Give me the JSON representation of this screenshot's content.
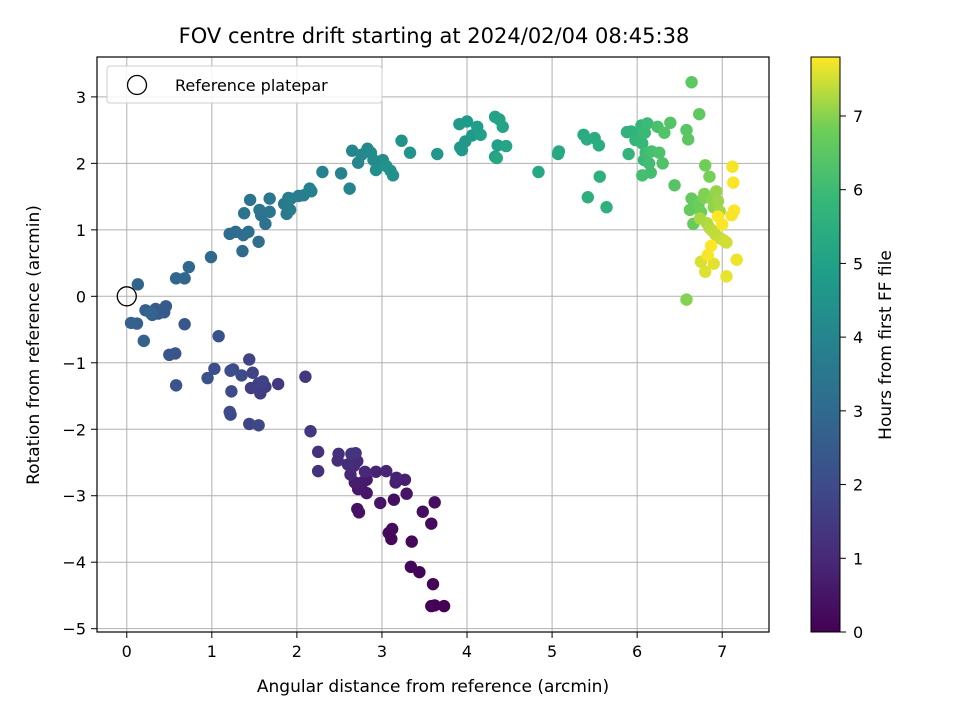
{
  "chart_data": {
    "type": "scatter",
    "title": "FOV centre drift starting at 2024/02/04 08:45:38",
    "xlabel": "Angular distance from reference (arcmin)",
    "ylabel": "Rotation from reference (arcmin)",
    "xlim": [
      -0.35,
      7.55
    ],
    "ylim": [
      -5.05,
      3.6
    ],
    "xticks": [
      "0",
      "1",
      "2",
      "3",
      "4",
      "5",
      "6",
      "7"
    ],
    "yticks": [
      "3",
      "2",
      "1",
      "0",
      "−1",
      "−2",
      "−3",
      "−4",
      "−5"
    ],
    "grid": true,
    "legend_position": "top-left",
    "legend_label": "Reference platepar",
    "reference_point": [
      0,
      0
    ],
    "colorbar": {
      "label": "Hours from first FF file",
      "range": [
        0,
        7.8
      ],
      "ticks": [
        "0",
        "1",
        "2",
        "3",
        "4",
        "5",
        "6",
        "7"
      ],
      "colormap": "viridis"
    },
    "points": [
      [
        3.62,
        -4.65,
        0.02
      ],
      [
        3.73,
        -4.66,
        0.04
      ],
      [
        3.58,
        -4.66,
        0.06
      ],
      [
        3.6,
        -4.33,
        0.09
      ],
      [
        3.44,
        -4.15,
        0.11
      ],
      [
        3.34,
        -4.07,
        0.13
      ],
      [
        3.35,
        -3.69,
        0.15
      ],
      [
        3.11,
        -3.65,
        0.18
      ],
      [
        3.08,
        -3.56,
        0.2
      ],
      [
        3.12,
        -3.5,
        0.23
      ],
      [
        3.58,
        -3.42,
        0.26
      ],
      [
        3.62,
        -3.1,
        0.3
      ],
      [
        3.48,
        -3.24,
        0.33
      ],
      [
        3.14,
        -3.06,
        0.36
      ],
      [
        2.71,
        -3.2,
        0.4
      ],
      [
        2.73,
        -3.25,
        0.43
      ],
      [
        2.98,
        -3.11,
        0.47
      ],
      [
        3.29,
        -2.97,
        0.5
      ],
      [
        2.82,
        -2.96,
        0.54
      ],
      [
        2.72,
        -2.9,
        0.58
      ],
      [
        2.78,
        -2.79,
        0.62
      ],
      [
        2.82,
        -2.76,
        0.66
      ],
      [
        2.68,
        -2.8,
        0.7
      ],
      [
        3.16,
        -2.8,
        0.74
      ],
      [
        3.27,
        -2.76,
        0.78
      ],
      [
        3.17,
        -2.73,
        0.82
      ],
      [
        2.93,
        -2.64,
        0.86
      ],
      [
        3.05,
        -2.63,
        0.9
      ],
      [
        2.63,
        -2.68,
        0.94
      ],
      [
        2.8,
        -2.64,
        0.98
      ],
      [
        2.67,
        -2.55,
        1.02
      ],
      [
        2.71,
        -2.48,
        1.06
      ],
      [
        2.6,
        -2.53,
        1.1
      ],
      [
        2.48,
        -2.47,
        1.14
      ],
      [
        2.49,
        -2.37,
        1.18
      ],
      [
        2.25,
        -2.63,
        1.22
      ],
      [
        2.25,
        -2.34,
        1.26
      ],
      [
        2.64,
        -2.37,
        1.3
      ],
      [
        2.69,
        -2.36,
        1.34
      ],
      [
        2.16,
        -2.03,
        1.38
      ],
      [
        2.1,
        -1.21,
        1.42
      ],
      [
        1.78,
        -1.32,
        1.46
      ],
      [
        1.57,
        -1.46,
        1.5
      ],
      [
        1.63,
        -1.36,
        1.54
      ],
      [
        1.46,
        -1.38,
        1.58
      ],
      [
        1.56,
        -1.41,
        1.62
      ],
      [
        1.55,
        -1.31,
        1.66
      ],
      [
        1.6,
        -1.28,
        1.7
      ],
      [
        1.48,
        -1.15,
        1.74
      ],
      [
        1.44,
        -0.95,
        1.78
      ],
      [
        1.44,
        -1.92,
        1.82
      ],
      [
        1.55,
        -1.94,
        1.86
      ],
      [
        1.22,
        -1.78,
        1.9
      ],
      [
        1.21,
        -1.74,
        1.94
      ],
      [
        1.23,
        -1.43,
        1.98
      ],
      [
        1.35,
        -1.19,
        2.02
      ],
      [
        1.25,
        -1.1,
        2.06
      ],
      [
        1.22,
        -1.12,
        2.1
      ],
      [
        1.03,
        -1.09,
        2.14
      ],
      [
        0.95,
        -1.23,
        2.18
      ],
      [
        1.08,
        -0.6,
        2.22
      ],
      [
        0.58,
        -1.34,
        2.26
      ],
      [
        0.57,
        -0.86,
        2.3
      ],
      [
        0.5,
        -0.88,
        2.34
      ],
      [
        0.68,
        -0.42,
        2.38
      ],
      [
        0.44,
        -0.24,
        2.42
      ],
      [
        0.46,
        -0.15,
        2.46
      ],
      [
        0.37,
        -0.26,
        2.5
      ],
      [
        0.34,
        -0.19,
        2.54
      ],
      [
        0.3,
        -0.28,
        2.58
      ],
      [
        0.22,
        -0.21,
        2.62
      ],
      [
        0.12,
        -0.41,
        2.66
      ],
      [
        0.05,
        -0.4,
        2.7
      ],
      [
        0.2,
        -0.67,
        2.74
      ],
      [
        0.28,
        -0.25,
        2.78
      ],
      [
        0.13,
        0.18,
        2.82
      ],
      [
        0.58,
        0.27,
        2.86
      ],
      [
        0.68,
        0.27,
        2.9
      ],
      [
        0.73,
        0.44,
        2.94
      ],
      [
        0.99,
        0.59,
        2.98
      ],
      [
        1.36,
        0.68,
        3.02
      ],
      [
        1.21,
        0.94,
        3.06
      ],
      [
        1.28,
        0.97,
        3.1
      ],
      [
        1.37,
        0.92,
        3.14
      ],
      [
        1.43,
        0.97,
        3.18
      ],
      [
        1.55,
        0.82,
        3.22
      ],
      [
        1.63,
        1.09,
        3.26
      ],
      [
        1.58,
        1.22,
        3.3
      ],
      [
        1.45,
        1.45,
        3.34
      ],
      [
        1.38,
        1.25,
        3.38
      ],
      [
        1.56,
        1.3,
        3.42
      ],
      [
        1.68,
        1.27,
        3.46
      ],
      [
        1.68,
        1.47,
        3.5
      ],
      [
        1.85,
        1.39,
        3.54
      ],
      [
        1.88,
        1.24,
        3.58
      ],
      [
        1.92,
        1.3,
        3.62
      ],
      [
        1.9,
        1.48,
        3.66
      ],
      [
        2.02,
        1.51,
        3.7
      ],
      [
        2.08,
        1.52,
        3.74
      ],
      [
        1.93,
        1.47,
        3.78
      ],
      [
        2.17,
        1.58,
        3.82
      ],
      [
        2.15,
        1.62,
        3.86
      ],
      [
        2.3,
        1.87,
        3.9
      ],
      [
        2.52,
        1.85,
        3.94
      ],
      [
        2.62,
        1.62,
        3.98
      ],
      [
        2.65,
        2.19,
        4.02
      ],
      [
        2.72,
        2.01,
        4.06
      ],
      [
        2.76,
        2.13,
        4.1
      ],
      [
        2.83,
        2.22,
        4.14
      ],
      [
        2.9,
        2.05,
        4.18
      ],
      [
        2.87,
        2.16,
        4.22
      ],
      [
        2.95,
        1.98,
        4.26
      ],
      [
        3.01,
        2.05,
        4.3
      ],
      [
        2.93,
        1.9,
        4.34
      ],
      [
        3.1,
        1.89,
        4.38
      ],
      [
        3.13,
        1.82,
        4.42
      ],
      [
        3.05,
        1.96,
        4.46
      ],
      [
        3.23,
        2.34,
        4.5
      ],
      [
        3.33,
        2.16,
        4.54
      ],
      [
        3.65,
        2.14,
        4.58
      ],
      [
        3.92,
        2.24,
        4.62
      ],
      [
        3.98,
        2.33,
        4.66
      ],
      [
        3.94,
        2.2,
        4.7
      ],
      [
        3.91,
        2.59,
        4.74
      ],
      [
        4.0,
        2.63,
        4.78
      ],
      [
        4.06,
        2.42,
        4.82
      ],
      [
        4.12,
        2.55,
        4.86
      ],
      [
        4.16,
        2.43,
        4.9
      ],
      [
        4.33,
        2.1,
        4.94
      ],
      [
        4.36,
        2.27,
        4.98
      ],
      [
        4.33,
        2.7,
        5.02
      ],
      [
        4.38,
        2.66,
        5.06
      ],
      [
        4.42,
        2.55,
        5.1
      ],
      [
        4.46,
        2.26,
        5.14
      ],
      [
        4.35,
        2.08,
        5.18
      ],
      [
        4.84,
        1.87,
        5.22
      ],
      [
        5.07,
        2.14,
        5.26
      ],
      [
        5.08,
        2.18,
        5.3
      ],
      [
        5.37,
        2.43,
        5.34
      ],
      [
        5.41,
        2.36,
        5.38
      ],
      [
        5.5,
        2.38,
        5.42
      ],
      [
        5.55,
        2.27,
        5.46
      ],
      [
        5.42,
        1.49,
        5.5
      ],
      [
        5.56,
        1.8,
        5.54
      ],
      [
        5.64,
        1.34,
        5.58
      ],
      [
        5.88,
        2.47,
        5.62
      ],
      [
        5.93,
        2.48,
        5.66
      ],
      [
        5.9,
        2.14,
        5.7
      ],
      [
        5.98,
        2.35,
        5.74
      ],
      [
        6.02,
        2.41,
        5.78
      ],
      [
        6.05,
        2.57,
        5.82
      ],
      [
        6.06,
        2.3,
        5.86
      ],
      [
        6.08,
        2.05,
        5.9
      ],
      [
        6.09,
        2.46,
        5.94
      ],
      [
        6.12,
        2.6,
        5.98
      ],
      [
        6.1,
        2.16,
        6.02
      ],
      [
        6.14,
        2.0,
        6.06
      ],
      [
        6.16,
        1.86,
        6.1
      ],
      [
        6.06,
        1.82,
        6.14
      ],
      [
        6.17,
        2.18,
        6.18
      ],
      [
        6.24,
        2.55,
        6.22
      ],
      [
        6.26,
        2.16,
        6.26
      ],
      [
        6.3,
        2.0,
        6.3
      ],
      [
        6.32,
        2.46,
        6.34
      ],
      [
        6.39,
        2.61,
        6.38
      ],
      [
        6.44,
        1.67,
        6.42
      ],
      [
        6.58,
        2.5,
        6.46
      ],
      [
        6.6,
        2.36,
        6.5
      ],
      [
        6.64,
        3.22,
        6.54
      ],
      [
        6.73,
        2.74,
        6.58
      ],
      [
        6.64,
        1.47,
        6.62
      ],
      [
        6.62,
        1.3,
        6.66
      ],
      [
        6.66,
        1.09,
        6.7
      ],
      [
        6.72,
        1.38,
        6.74
      ],
      [
        6.75,
        1.27,
        6.78
      ],
      [
        6.8,
        1.97,
        6.82
      ],
      [
        6.85,
        1.8,
        6.86
      ],
      [
        6.78,
        1.48,
        6.9
      ],
      [
        6.79,
        1.54,
        6.94
      ],
      [
        6.58,
        -0.05,
        6.98
      ],
      [
        6.88,
        1.46,
        7.02
      ],
      [
        6.9,
        1.34,
        7.06
      ],
      [
        6.93,
        1.58,
        7.1
      ],
      [
        6.95,
        1.43,
        7.14
      ],
      [
        6.97,
        1.28,
        7.18
      ],
      [
        6.74,
        1.17,
        7.22
      ],
      [
        6.82,
        1.1,
        7.26
      ],
      [
        6.85,
        1.03,
        7.3
      ],
      [
        6.88,
        0.99,
        7.34
      ],
      [
        6.92,
        0.93,
        7.38
      ],
      [
        6.98,
        0.87,
        7.42
      ],
      [
        7.02,
        0.84,
        7.46
      ],
      [
        7.05,
        0.81,
        7.5
      ],
      [
        6.75,
        0.52,
        7.54
      ],
      [
        6.8,
        0.37,
        7.58
      ],
      [
        6.9,
        0.49,
        7.62
      ],
      [
        7.05,
        0.3,
        7.66
      ],
      [
        7.17,
        0.55,
        7.7
      ],
      [
        7.12,
        1.95,
        7.74
      ],
      [
        7.13,
        1.71,
        7.78
      ],
      [
        7.14,
        1.29,
        7.8
      ],
      [
        6.95,
        1.2,
        7.8
      ],
      [
        7.0,
        1.08,
        7.78
      ],
      [
        6.87,
        0.76,
        7.8
      ],
      [
        6.83,
        0.62,
        7.76
      ],
      [
        7.11,
        1.22,
        7.76
      ]
    ]
  }
}
